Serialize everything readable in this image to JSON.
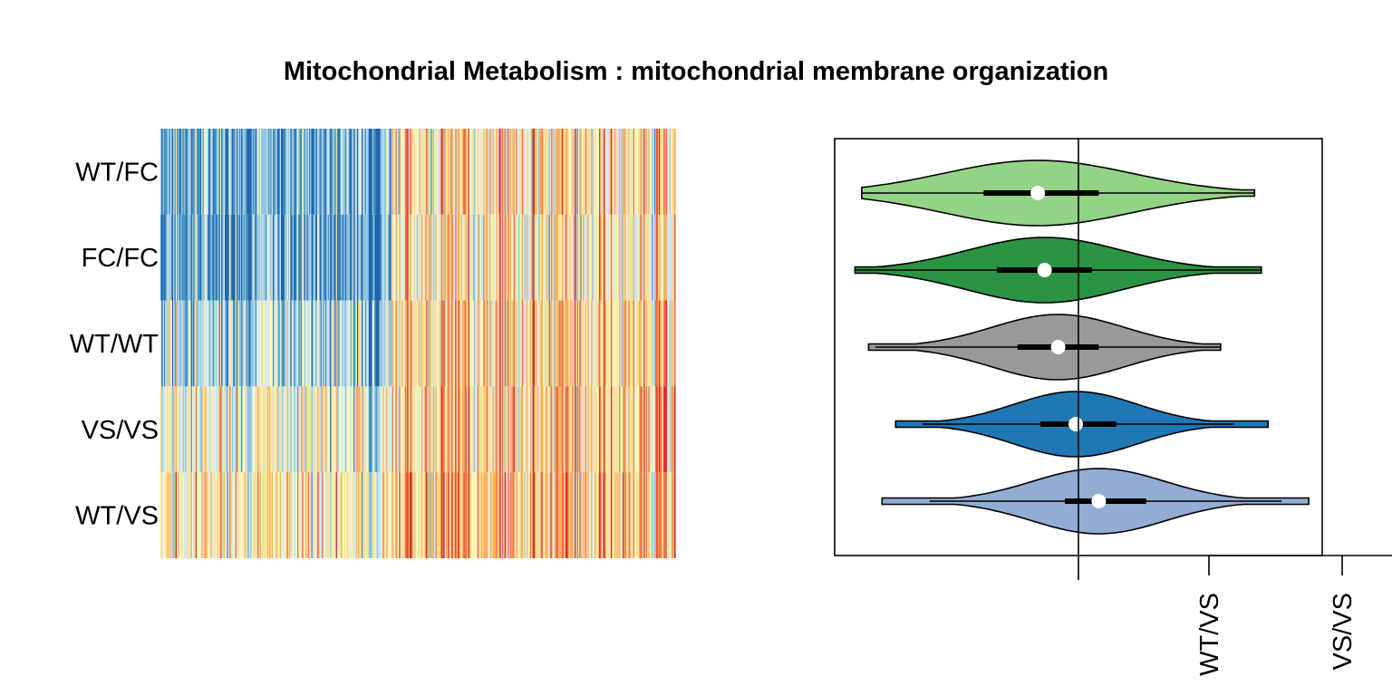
{
  "title": "Mitochondrial Metabolism : mitochondrial membrane organization",
  "chart_data": [
    {
      "type": "heatmap",
      "rows": [
        "WT/FC",
        "FC/FC",
        "WT/WT",
        "VS/VS",
        "WT/VS"
      ],
      "palette": [
        "#2166ac",
        "#4393c3",
        "#92c5de",
        "#d1e5f0",
        "#f7f7c0",
        "#fee090",
        "#fdae61",
        "#f46d43",
        "#d73027"
      ],
      "row_blocks": [
        {
          "row": "WT/FC",
          "left_mean": 0.22,
          "right_mean": 0.62
        },
        {
          "row": "FC/FC",
          "left_mean": 0.2,
          "right_mean": 0.58
        },
        {
          "row": "WT/WT",
          "left_mean": 0.34,
          "right_mean": 0.64
        },
        {
          "row": "VS/VS",
          "left_mean": 0.5,
          "right_mean": 0.66
        },
        {
          "row": "WT/VS",
          "left_mean": 0.58,
          "right_mean": 0.7
        }
      ],
      "grid": false
    },
    {
      "type": "violin",
      "orientation": "horizontal",
      "series": [
        {
          "color": "#93d385",
          "median": -0.3,
          "q1": -0.7,
          "q3": 0.15,
          "whisker_low": -1.6,
          "whisker_high": 1.3,
          "min": -1.6,
          "max": 1.3
        },
        {
          "color": "#2a9444",
          "median": -0.25,
          "q1": -0.6,
          "q3": 0.1,
          "whisker_low": -1.65,
          "whisker_high": 1.35,
          "min": -1.65,
          "max": 1.35
        },
        {
          "color": "#999999",
          "median": -0.15,
          "q1": -0.45,
          "q3": 0.15,
          "whisker_low": -1.5,
          "whisker_high": 1.05,
          "min": -1.55,
          "max": 1.05
        },
        {
          "color": "#1f78b4",
          "median": -0.02,
          "q1": -0.28,
          "q3": 0.28,
          "whisker_low": -1.15,
          "whisker_high": 1.15,
          "min": -1.35,
          "max": 1.4
        },
        {
          "color": "#92acd4",
          "median": 0.15,
          "q1": -0.1,
          "q3": 0.5,
          "whisker_low": -1.1,
          "whisker_high": 1.5,
          "min": -1.45,
          "max": 1.7
        }
      ],
      "xlim": [
        -1.8,
        1.8
      ],
      "reference_line_x": 0,
      "legend_tick_labels": [
        "WT/VS",
        "VS/VS"
      ]
    }
  ]
}
